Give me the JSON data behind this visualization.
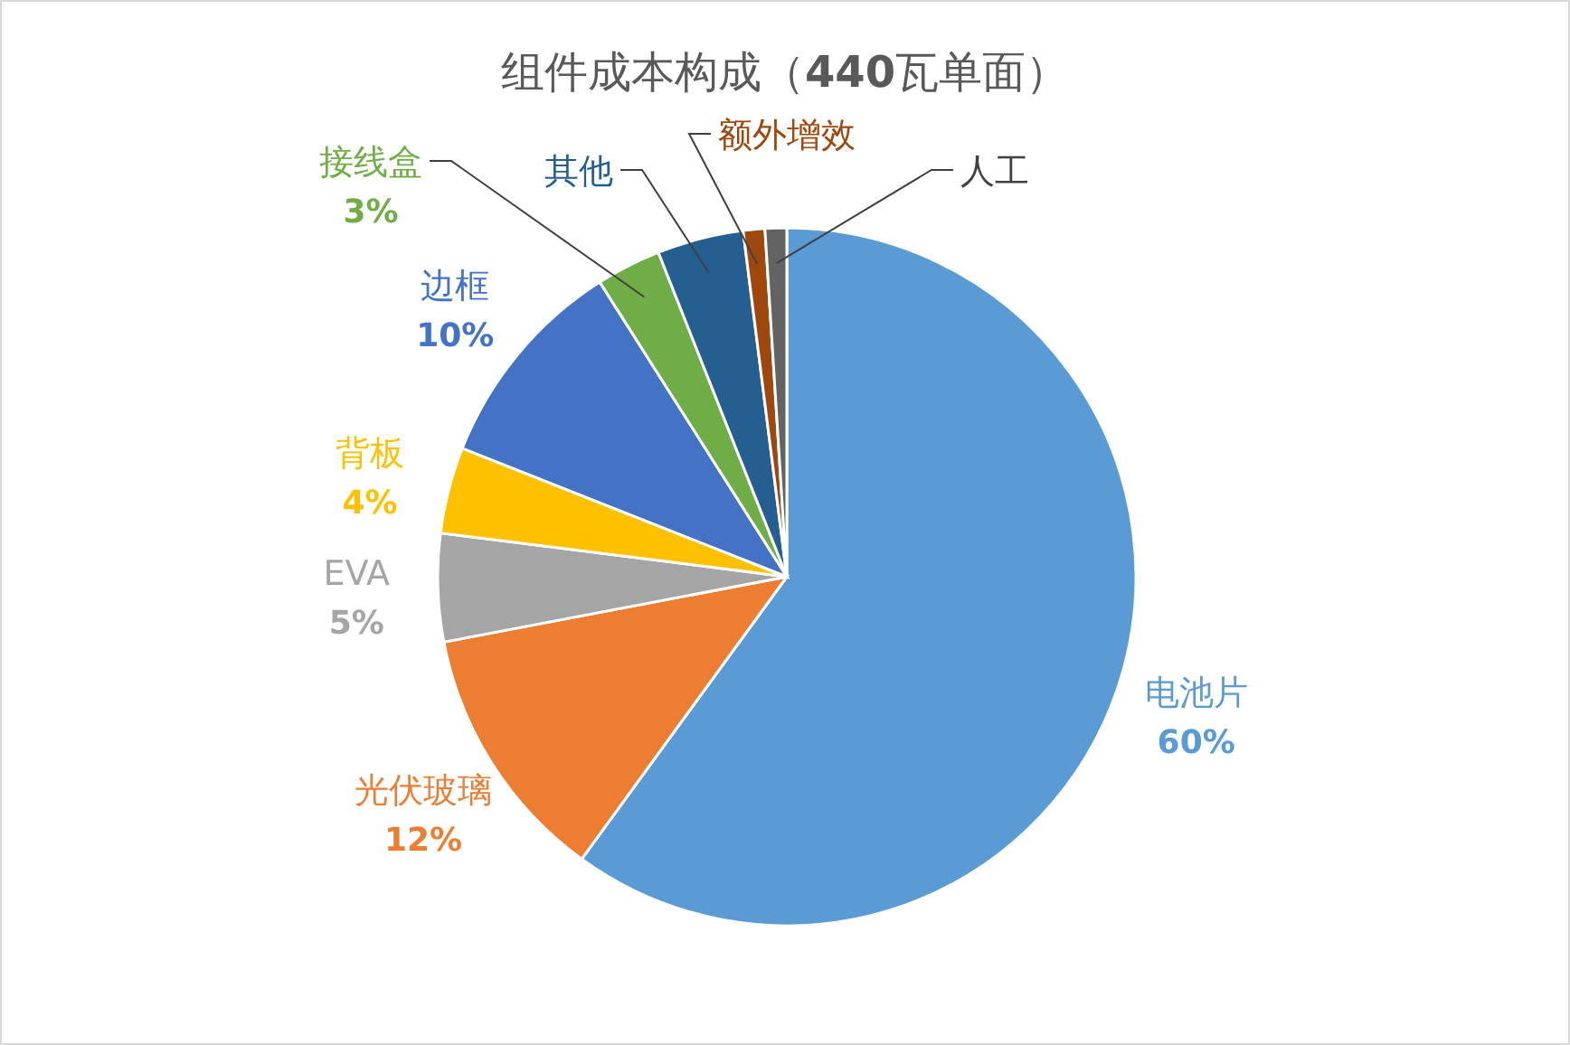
{
  "chart_data": {
    "type": "pie",
    "title": "组件成本构成（**440**瓦单面）",
    "categories": [
      "电池片",
      "光伏玻璃",
      "EVA",
      "背板",
      "边框",
      "接线盒",
      "其他",
      "额外增效",
      "人工"
    ],
    "values": [
      60,
      12,
      5,
      4,
      10,
      3,
      4,
      1,
      1
    ],
    "colors": [
      "#5b9bd5",
      "#ed7d31",
      "#a5a5a5",
      "#ffc000",
      "#4472c4",
      "#70ad47",
      "#255e91",
      "#9e480e",
      "#636363"
    ],
    "value_labels": [
      "60%",
      "12%",
      "5%",
      "4%",
      "10%",
      "3%",
      null,
      null,
      null
    ]
  }
}
